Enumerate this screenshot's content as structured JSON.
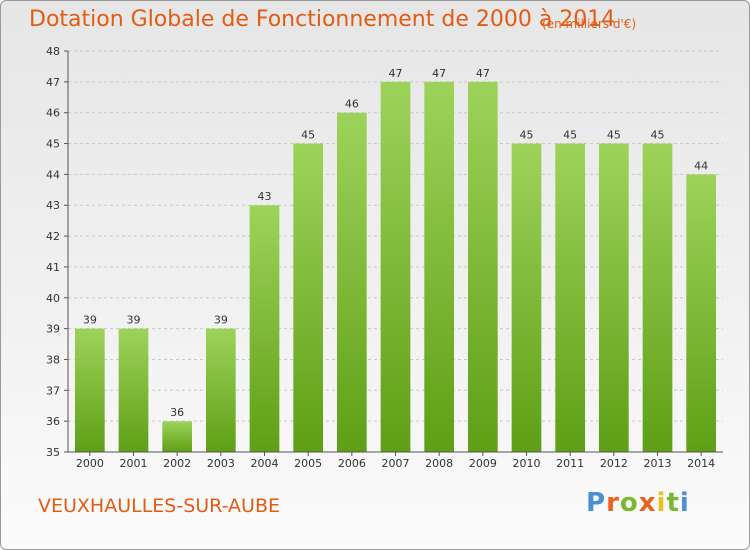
{
  "title": "Dotation Globale de Fonctionnement de 2000 à 2014",
  "unit_note": "(en milliers d'€)",
  "commune": "VEUXHAULLES-SUR-AUBE",
  "logo": {
    "letters": [
      "P",
      "r",
      "o",
      "x",
      "i",
      "t",
      "i"
    ],
    "colors": [
      "#4a8fd4",
      "#e8641e",
      "#7cb82f",
      "#e8641e",
      "#e8c21e",
      "#7cb82f",
      "#4a8fd4"
    ]
  },
  "colors": {
    "bar_light": "#9dd35a",
    "bar_dark": "#5f9f16",
    "grid": "#c8c8c8",
    "title": "#e25c14"
  },
  "chart_data": {
    "type": "bar",
    "categories": [
      "2000",
      "2001",
      "2002",
      "2003",
      "2004",
      "2005",
      "2006",
      "2007",
      "2008",
      "2009",
      "2010",
      "2011",
      "2012",
      "2013",
      "2014"
    ],
    "values": [
      39,
      39,
      36,
      39,
      43,
      45,
      46,
      47,
      47,
      47,
      45,
      45,
      45,
      45,
      44
    ],
    "data_labels": [
      "39",
      "39",
      "36",
      "39",
      "43",
      "45",
      "46",
      "47",
      "47",
      "47",
      "45",
      "45",
      "45",
      "45",
      "44"
    ],
    "ylim": [
      35,
      48
    ],
    "yticks": [
      35,
      36,
      37,
      38,
      39,
      40,
      41,
      42,
      43,
      44,
      45,
      46,
      47,
      48
    ],
    "ytick_labels": [
      "35",
      "36",
      "37",
      "38",
      "39",
      "40",
      "41",
      "42",
      "43",
      "44",
      "45",
      "46",
      "47",
      "48"
    ],
    "grid": true,
    "title": "Dotation Globale de Fonctionnement de 2000 à 2014",
    "xlabel": "",
    "ylabel": ""
  }
}
